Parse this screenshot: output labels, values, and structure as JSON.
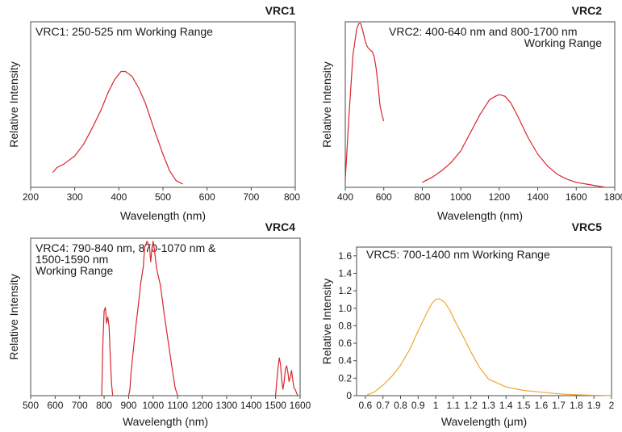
{
  "chart_data": [
    {
      "id": "vrc1",
      "type": "line",
      "title": "VRC1",
      "annotation": [
        "VRC1: 250-525 nm Working Range"
      ],
      "xlabel": "Wavelength (nm)",
      "ylabel": "Relative Intensity",
      "xlim": [
        200,
        800
      ],
      "ylim": [
        0,
        1
      ],
      "xticks": [
        200,
        300,
        400,
        500,
        600,
        700,
        800
      ],
      "xticklabels": [
        "200",
        "300",
        "400",
        "500",
        "600",
        "700",
        "800"
      ],
      "yticks": [],
      "yticklabels": [],
      "legend": "none",
      "color": "#d8262e",
      "series": [
        {
          "x": [
            250,
            260,
            275,
            300,
            320,
            340,
            360,
            375,
            390,
            405,
            415,
            430,
            445,
            460,
            480,
            500,
            515,
            530,
            545
          ],
          "y": [
            0.09,
            0.12,
            0.14,
            0.19,
            0.26,
            0.36,
            0.47,
            0.57,
            0.65,
            0.7,
            0.7,
            0.67,
            0.6,
            0.51,
            0.35,
            0.2,
            0.1,
            0.04,
            0.02
          ]
        }
      ]
    },
    {
      "id": "vrc2",
      "type": "line",
      "title": "VRC2",
      "annotation": [
        "VRC2: 400-640 nm and 800-1700 nm",
        "Working Range"
      ],
      "xlabel": "Wavelength (nm)",
      "ylabel": "Relative Intensity",
      "xlim": [
        400,
        1800
      ],
      "ylim": [
        0,
        1
      ],
      "xticks": [
        400,
        600,
        800,
        1000,
        1200,
        1400,
        1600,
        1800
      ],
      "xticklabels": [
        "400",
        "600",
        "800",
        "1000",
        "1200",
        "1400",
        "1600",
        "1800"
      ],
      "yticks": [],
      "yticklabels": [],
      "legend": "none",
      "color": "#d8262e",
      "series": [
        {
          "x": [
            400,
            420,
            440,
            460,
            470,
            480,
            490,
            500,
            510,
            520,
            540,
            550,
            560,
            570,
            580,
            590,
            600
          ],
          "y": [
            0.05,
            0.45,
            0.8,
            0.96,
            0.99,
            0.99,
            0.95,
            0.9,
            0.86,
            0.84,
            0.82,
            0.79,
            0.72,
            0.62,
            0.5,
            0.44,
            0.4
          ]
        },
        {
          "x": [
            800,
            850,
            900,
            950,
            1000,
            1050,
            1100,
            1150,
            1180,
            1200,
            1230,
            1260,
            1300,
            1350,
            1400,
            1450,
            1500,
            1550,
            1600,
            1650,
            1700,
            1750
          ],
          "y": [
            0.03,
            0.06,
            0.1,
            0.15,
            0.22,
            0.33,
            0.44,
            0.53,
            0.55,
            0.56,
            0.55,
            0.51,
            0.42,
            0.3,
            0.2,
            0.13,
            0.08,
            0.05,
            0.03,
            0.02,
            0.01,
            0.0
          ]
        }
      ]
    },
    {
      "id": "vrc4",
      "type": "line",
      "title": "VRC4",
      "annotation": [
        "VRC4: 790-840 nm, 870-1070 nm &",
        "1500-1590 nm",
        "Working Range"
      ],
      "xlabel": "Wavelength (nm)",
      "ylabel": "Relative Intensity",
      "xlim": [
        500,
        1600
      ],
      "ylim": [
        0,
        1
      ],
      "xticks": [
        500,
        600,
        700,
        800,
        900,
        1000,
        1100,
        1200,
        1300,
        1400,
        1500,
        1600
      ],
      "xticklabels": [
        "500",
        "600",
        "700",
        "800",
        "900",
        "1000",
        "1100",
        "1200",
        "1300",
        "1400",
        "1500",
        "1600"
      ],
      "yticks": [],
      "yticklabels": [],
      "legend": "none",
      "color": "#d8262e",
      "series": [
        {
          "x": [
            790,
            795,
            800,
            805,
            810,
            815,
            820,
            825,
            830,
            835
          ],
          "y": [
            0.0,
            0.35,
            0.54,
            0.56,
            0.46,
            0.5,
            0.44,
            0.25,
            0.08,
            0.0
          ]
        },
        {
          "x": [
            900,
            905,
            910,
            920,
            930,
            940,
            950,
            960,
            965,
            975,
            985,
            990,
            995,
            1000,
            1005,
            1010,
            1015,
            1030,
            1045,
            1060,
            1075,
            1090,
            1100
          ],
          "y": [
            0.0,
            0.04,
            0.15,
            0.3,
            0.45,
            0.58,
            0.72,
            0.82,
            0.94,
            0.98,
            0.95,
            0.85,
            0.93,
            0.98,
            0.93,
            0.86,
            0.8,
            0.7,
            0.52,
            0.36,
            0.2,
            0.05,
            0.0
          ]
        },
        {
          "x": [
            1500,
            1505,
            1510,
            1515,
            1520,
            1525,
            1530,
            1535,
            1540,
            1545,
            1550,
            1555,
            1560,
            1565,
            1570,
            1575,
            1580,
            1585,
            1590
          ],
          "y": [
            0.0,
            0.1,
            0.18,
            0.24,
            0.2,
            0.1,
            0.04,
            0.09,
            0.17,
            0.19,
            0.15,
            0.09,
            0.12,
            0.16,
            0.1,
            0.05,
            0.04,
            0.02,
            0.0
          ]
        }
      ]
    },
    {
      "id": "vrc5",
      "type": "line",
      "title": "VRC5",
      "annotation": [
        "VRC5: 700-1400 nm Working Range"
      ],
      "xlabel": "Wavelength (μm)",
      "ylabel": "Relative Intensity",
      "xlim": [
        0.55,
        2.0
      ],
      "ylim": [
        0,
        1.7
      ],
      "xticks": [
        0.6,
        0.7,
        0.8,
        0.9,
        1.0,
        1.1,
        1.2,
        1.3,
        1.4,
        1.5,
        1.6,
        1.7,
        1.8,
        1.9,
        2.0
      ],
      "xticklabels": [
        "0.6",
        "0.7",
        "0.8",
        "0.9",
        "1",
        "1.1",
        "1.2",
        "1.3",
        "1.4",
        "1.5",
        "1.6",
        "1.7",
        "1.8",
        "1.9",
        "2"
      ],
      "yticks": [
        0,
        0.2,
        0.4,
        0.6,
        0.8,
        1.0,
        1.2,
        1.4,
        1.6
      ],
      "yticklabels": [
        "0",
        "0.2",
        "0.4",
        "0.6",
        "0.8",
        "1.0",
        "1.2",
        "1.4",
        "1.6"
      ],
      "legend": "none",
      "color": "#f0a630",
      "series": [
        {
          "x": [
            0.6,
            0.65,
            0.7,
            0.75,
            0.8,
            0.85,
            0.9,
            0.95,
            0.98,
            1.0,
            1.02,
            1.05,
            1.08,
            1.1,
            1.15,
            1.2,
            1.25,
            1.3,
            1.4,
            1.5,
            1.6,
            1.7,
            1.8,
            1.9,
            2.0
          ],
          "y": [
            0.0,
            0.04,
            0.12,
            0.22,
            0.35,
            0.52,
            0.74,
            0.95,
            1.06,
            1.1,
            1.11,
            1.07,
            0.98,
            0.89,
            0.7,
            0.5,
            0.32,
            0.19,
            0.1,
            0.06,
            0.04,
            0.02,
            0.01,
            0.005,
            0.0
          ]
        }
      ]
    }
  ]
}
